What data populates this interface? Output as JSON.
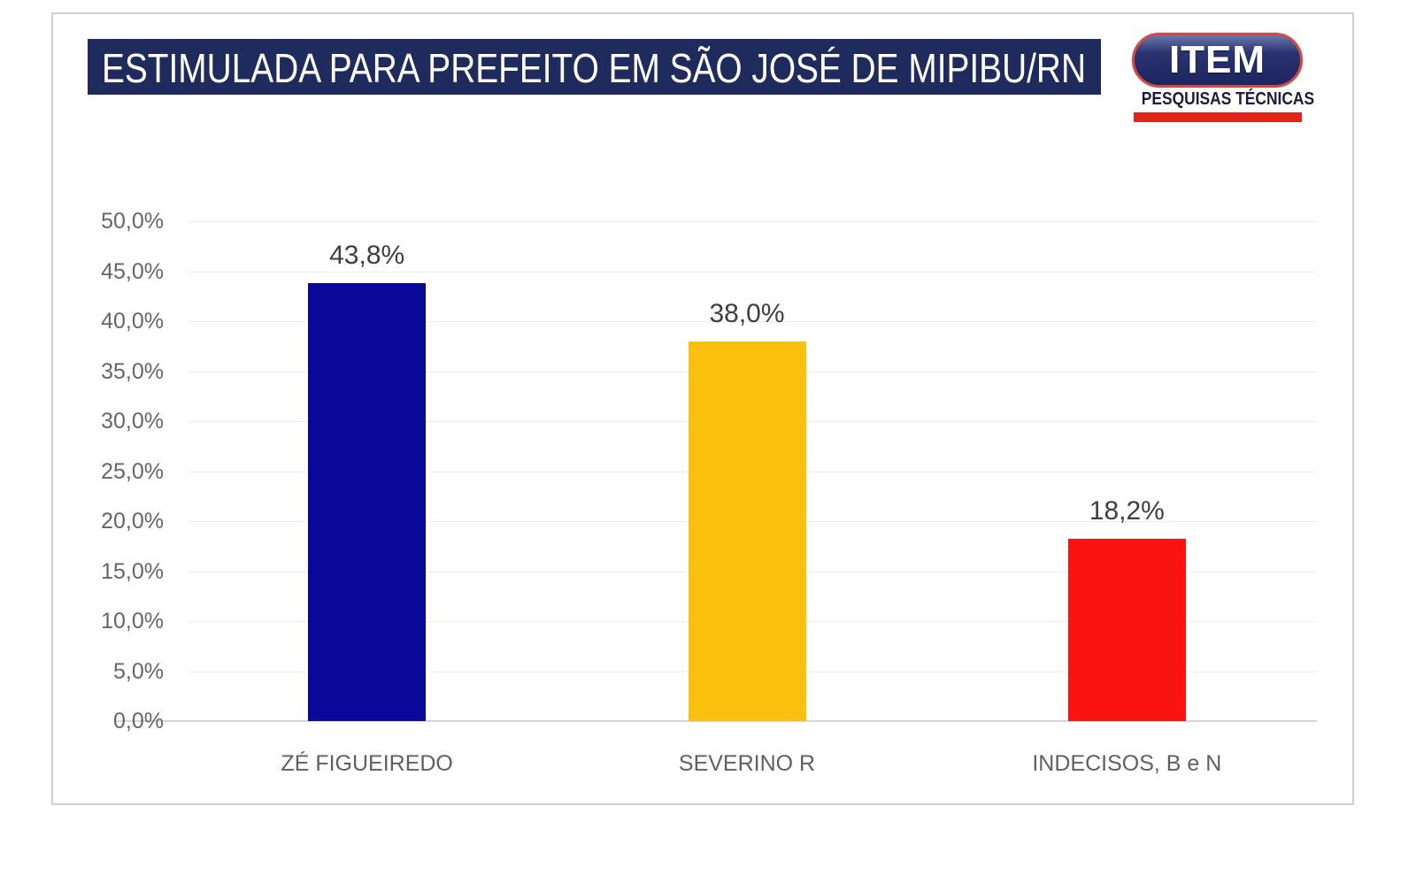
{
  "header": {
    "title": "ESTIMULADA PARA PREFEITO EM SÃO JOSÉ DE MIPIBU/RN",
    "title_bg": "#1f2b5c",
    "logo": {
      "brand": "ITEM",
      "subtitle": "PESQUISAS TÉCNICAS",
      "navy": "#232c66",
      "accent_red": "#e2251b"
    }
  },
  "chart_data": {
    "type": "bar",
    "title": "ESTIMULADA PARA PREFEITO EM SÃO JOSÉ DE MIPIBU/RN",
    "categories": [
      "ZÉ FIGUEIREDO",
      "SEVERINO R",
      "INDECISOS, B e N"
    ],
    "values": [
      43.8,
      38.0,
      18.2
    ],
    "value_labels": [
      "43,8%",
      "38,0%",
      "18,2%"
    ],
    "bar_colors": [
      "#0a0898",
      "#fcc10f",
      "#fa140f"
    ],
    "xlabel": "",
    "ylabel": "",
    "ylim": [
      0,
      50
    ],
    "ytick_step": 5,
    "ytick_labels": [
      "0,0%",
      "5,0%",
      "10,0%",
      "15,0%",
      "20,0%",
      "25,0%",
      "30,0%",
      "35,0%",
      "40,0%",
      "45,0%",
      "50,0%"
    ],
    "grid": true,
    "legend": null
  }
}
